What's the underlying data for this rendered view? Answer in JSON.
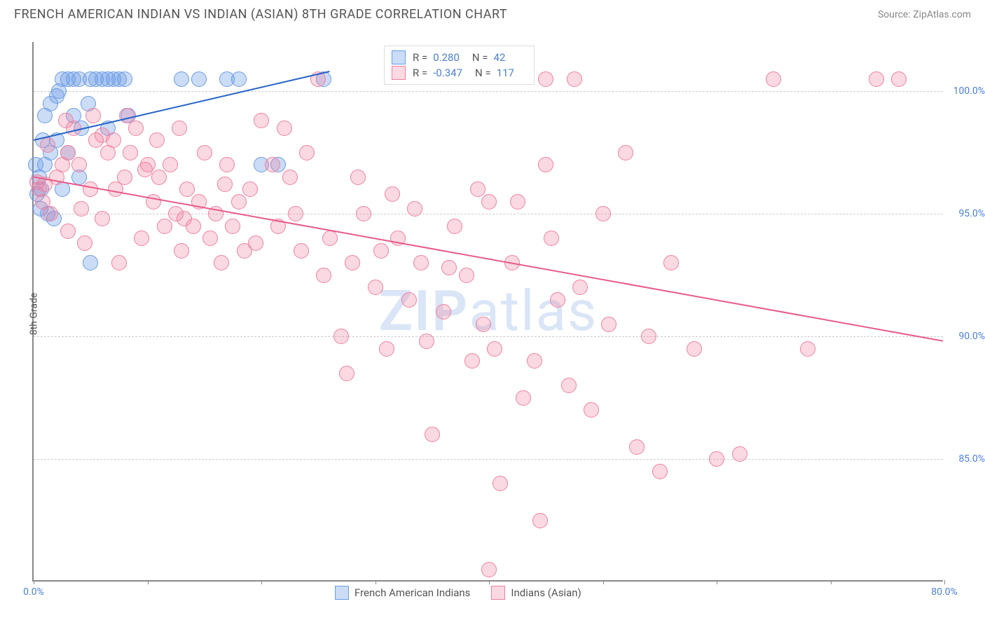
{
  "header": {
    "title": "FRENCH AMERICAN INDIAN VS INDIAN (ASIAN) 8TH GRADE CORRELATION CHART",
    "source": "Source: ZipAtlas.com"
  },
  "watermark": {
    "bold_part": "ZIP",
    "light_part": "atlas"
  },
  "chart": {
    "type": "scatter",
    "ylabel": "8th Grade",
    "xlim": [
      0,
      80
    ],
    "ylim": [
      80,
      102
    ],
    "x_ticks": [
      0,
      10,
      20,
      30,
      40,
      50,
      60,
      70,
      80
    ],
    "x_tick_labels": [
      "0.0%",
      "",
      "",
      "",
      "",
      "",
      "",
      "",
      "80.0%"
    ],
    "y_ticks": [
      85,
      90,
      95,
      100
    ],
    "y_tick_labels": [
      "85.0%",
      "90.0%",
      "95.0%",
      "100.0%"
    ],
    "grid_color": "#cccccc",
    "background_color": "#ffffff",
    "axis_color": "#888888",
    "tick_label_color": "#4a7fd8",
    "series": [
      {
        "name": "French American Indians",
        "color_fill": "rgba(107,156,230,0.35)",
        "color_stroke": "#6b9ce6",
        "R": "0.280",
        "N": "42",
        "trend": {
          "x1": 0,
          "y1": 98.0,
          "x2": 26,
          "y2": 100.8,
          "color": "#2663c9",
          "width": 2
        },
        "marker_r": 11,
        "points": [
          [
            0.5,
            96.5
          ],
          [
            0.7,
            96.0
          ],
          [
            0.3,
            95.8
          ],
          [
            0.6,
            95.2
          ],
          [
            1.0,
            97.0
          ],
          [
            1.2,
            95.0
          ],
          [
            1.0,
            99.0
          ],
          [
            1.5,
            99.5
          ],
          [
            2.0,
            99.8
          ],
          [
            2.5,
            100.5
          ],
          [
            3.0,
            100.5
          ],
          [
            3.5,
            100.5
          ],
          [
            4.0,
            100.5
          ],
          [
            4.2,
            98.5
          ],
          [
            5.0,
            100.5
          ],
          [
            5.5,
            100.5
          ],
          [
            6.0,
            100.5
          ],
          [
            6.5,
            100.5
          ],
          [
            7.0,
            100.5
          ],
          [
            7.5,
            100.5
          ],
          [
            8.0,
            100.5
          ],
          [
            8.3,
            99.0
          ],
          [
            2.0,
            98.0
          ],
          [
            3.0,
            97.5
          ],
          [
            1.5,
            97.5
          ],
          [
            2.5,
            96.0
          ],
          [
            4.0,
            96.5
          ],
          [
            5.0,
            93.0
          ],
          [
            13.0,
            100.5
          ],
          [
            14.5,
            100.5
          ],
          [
            17.0,
            100.5
          ],
          [
            18.0,
            100.5
          ],
          [
            20.0,
            97.0
          ],
          [
            25.5,
            100.5
          ],
          [
            21.5,
            97.0
          ],
          [
            1.8,
            94.8
          ],
          [
            3.5,
            99.0
          ],
          [
            6.5,
            98.5
          ],
          [
            0.2,
            97.0
          ],
          [
            0.8,
            98.0
          ],
          [
            2.2,
            100.0
          ],
          [
            4.8,
            99.5
          ]
        ]
      },
      {
        "name": "Indians (Asian)",
        "color_fill": "rgba(240,128,160,0.30)",
        "color_stroke": "#f080a0",
        "R": "-0.347",
        "N": "117",
        "trend": {
          "x1": 0,
          "y1": 96.5,
          "x2": 80,
          "y2": 89.8,
          "color": "#e85a8a",
          "width": 2
        },
        "marker_r": 11,
        "points": [
          [
            0.3,
            96.3
          ],
          [
            0.5,
            96.0
          ],
          [
            1.0,
            96.2
          ],
          [
            0.8,
            95.5
          ],
          [
            1.5,
            95.0
          ],
          [
            2.0,
            96.5
          ],
          [
            2.5,
            97.0
          ],
          [
            3.0,
            97.5
          ],
          [
            3.5,
            98.5
          ],
          [
            4.0,
            97.0
          ],
          [
            5.0,
            96.0
          ],
          [
            5.5,
            98.0
          ],
          [
            6.0,
            98.2
          ],
          [
            6.5,
            97.5
          ],
          [
            7.0,
            98.0
          ],
          [
            8.0,
            96.5
          ],
          [
            8.5,
            97.5
          ],
          [
            9.0,
            98.5
          ],
          [
            10.0,
            97.0
          ],
          [
            10.5,
            95.5
          ],
          [
            11.0,
            96.5
          ],
          [
            11.5,
            94.5
          ],
          [
            12.0,
            97.0
          ],
          [
            12.5,
            95.0
          ],
          [
            13.0,
            93.5
          ],
          [
            13.5,
            96.0
          ],
          [
            14.0,
            94.5
          ],
          [
            14.5,
            95.5
          ],
          [
            15.0,
            97.5
          ],
          [
            15.5,
            94.0
          ],
          [
            16.0,
            95.0
          ],
          [
            16.5,
            93.0
          ],
          [
            17.0,
            97.0
          ],
          [
            17.5,
            94.5
          ],
          [
            18.0,
            95.5
          ],
          [
            18.5,
            93.5
          ],
          [
            19.0,
            96.0
          ],
          [
            20.0,
            98.8
          ],
          [
            21.0,
            97.0
          ],
          [
            21.5,
            94.5
          ],
          [
            22.0,
            98.5
          ],
          [
            23.0,
            95.0
          ],
          [
            23.5,
            93.5
          ],
          [
            24.0,
            97.5
          ],
          [
            25.0,
            100.5
          ],
          [
            26.0,
            94.0
          ],
          [
            27.0,
            90.0
          ],
          [
            27.5,
            88.5
          ],
          [
            28.0,
            93.0
          ],
          [
            29.0,
            95.0
          ],
          [
            30.0,
            92.0
          ],
          [
            30.5,
            93.5
          ],
          [
            31.0,
            89.5
          ],
          [
            32.0,
            94.0
          ],
          [
            33.0,
            91.5
          ],
          [
            34.0,
            93.0
          ],
          [
            34.5,
            89.8
          ],
          [
            35.0,
            86.0
          ],
          [
            36.0,
            91.0
          ],
          [
            37.0,
            94.5
          ],
          [
            38.0,
            92.5
          ],
          [
            38.5,
            89.0
          ],
          [
            39.0,
            96.0
          ],
          [
            39.5,
            90.5
          ],
          [
            40.0,
            95.5
          ],
          [
            40.5,
            89.5
          ],
          [
            41.0,
            84.0
          ],
          [
            42.0,
            93.0
          ],
          [
            43.0,
            87.5
          ],
          [
            44.0,
            89.0
          ],
          [
            44.5,
            82.5
          ],
          [
            45.0,
            97.0
          ],
          [
            46.0,
            91.5
          ],
          [
            47.0,
            88.0
          ],
          [
            47.5,
            100.5
          ],
          [
            48.0,
            92.0
          ],
          [
            49.0,
            87.0
          ],
          [
            50.0,
            95.0
          ],
          [
            52.0,
            97.5
          ],
          [
            54.0,
            90.0
          ],
          [
            55.0,
            84.5
          ],
          [
            56.0,
            93.0
          ],
          [
            58.0,
            89.5
          ],
          [
            60.0,
            85.0
          ],
          [
            62.0,
            85.2
          ],
          [
            65.0,
            100.5
          ],
          [
            68.0,
            89.5
          ],
          [
            74.0,
            100.5
          ],
          [
            76.0,
            100.5
          ],
          [
            3.0,
            94.3
          ],
          [
            4.5,
            93.8
          ],
          [
            6.0,
            94.8
          ],
          [
            7.5,
            93.0
          ],
          [
            9.5,
            94.0
          ],
          [
            2.8,
            98.8
          ],
          [
            5.2,
            99.0
          ],
          [
            8.2,
            99.0
          ],
          [
            10.8,
            98.0
          ],
          [
            12.8,
            98.5
          ],
          [
            1.2,
            97.8
          ],
          [
            4.2,
            95.2
          ],
          [
            7.2,
            96.0
          ],
          [
            9.8,
            96.8
          ],
          [
            13.2,
            94.8
          ],
          [
            16.8,
            96.2
          ],
          [
            19.5,
            93.8
          ],
          [
            22.5,
            96.5
          ],
          [
            25.5,
            92.5
          ],
          [
            28.5,
            96.5
          ],
          [
            31.5,
            95.8
          ],
          [
            33.5,
            95.2
          ],
          [
            36.5,
            92.8
          ],
          [
            40.0,
            80.5
          ],
          [
            42.5,
            95.5
          ],
          [
            45.5,
            94.0
          ],
          [
            50.5,
            90.5
          ],
          [
            53.0,
            85.5
          ],
          [
            45.0,
            100.5
          ]
        ]
      }
    ],
    "bottom_legend": [
      {
        "label": "French American Indians",
        "fill": "rgba(107,156,230,0.35)",
        "stroke": "#6b9ce6"
      },
      {
        "label": "Indians (Asian)",
        "fill": "rgba(240,128,160,0.30)",
        "stroke": "#f080a0"
      }
    ]
  }
}
